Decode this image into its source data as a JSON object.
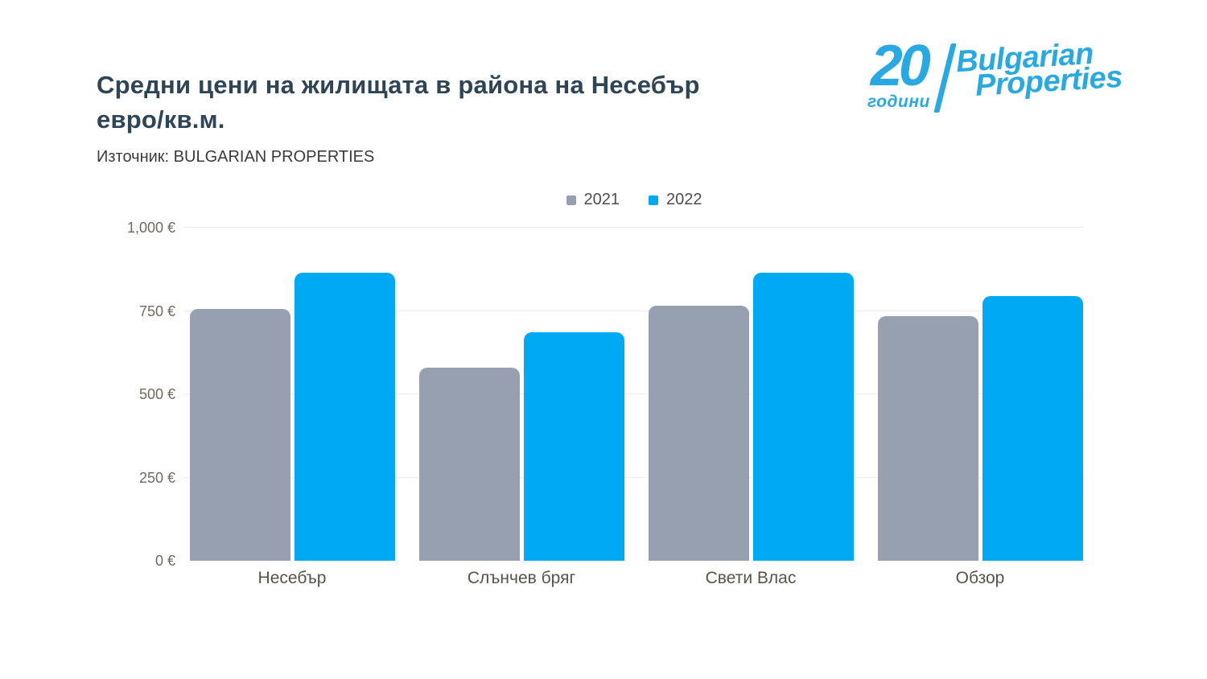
{
  "header": {
    "title_line1": "Средни цени на жилищата в района на Несебър",
    "title_line2": "евро/кв.м.",
    "source": "Източник: BULGARIAN PROPERTIES"
  },
  "logo": {
    "anniversary_number": "20",
    "anniversary_label": "години",
    "brand_line1": "Bulgarian",
    "brand_line2": "Properties",
    "color": "#29A9E2"
  },
  "chart_data": {
    "type": "bar",
    "title": "Средни цени на жилищата в района на Несебър евро/кв.м.",
    "source": "Източник: BULGARIAN PROPERTIES",
    "categories": [
      "Несебър",
      "Слънчев бряг",
      "Свети Влас",
      "Обзор"
    ],
    "series": [
      {
        "name": "2021",
        "color": "#96A0B1",
        "values": [
          755,
          580,
          765,
          735
        ]
      },
      {
        "name": "2022",
        "color": "#00A9F4",
        "values": [
          865,
          685,
          865,
          795
        ]
      }
    ],
    "unit": "€/кв.м.",
    "ylim": [
      0,
      1000
    ],
    "yticks": [
      {
        "value": 0,
        "label": "0 €"
      },
      {
        "value": 250,
        "label": "250 €"
      },
      {
        "value": 500,
        "label": "500 €"
      },
      {
        "value": 750,
        "label": "750 €"
      },
      {
        "value": 1000,
        "label": "1,000 €"
      }
    ],
    "grid": true,
    "legend_position": "top-center"
  },
  "colors": {
    "background": "#FFFFFF",
    "title_text": "#2E4557",
    "source_text": "#3B3B3B",
    "tick_text": "#6E6A60",
    "category_text": "#57534B",
    "legend_text": "#4D4D4D",
    "gridline": "#ECECEC"
  }
}
